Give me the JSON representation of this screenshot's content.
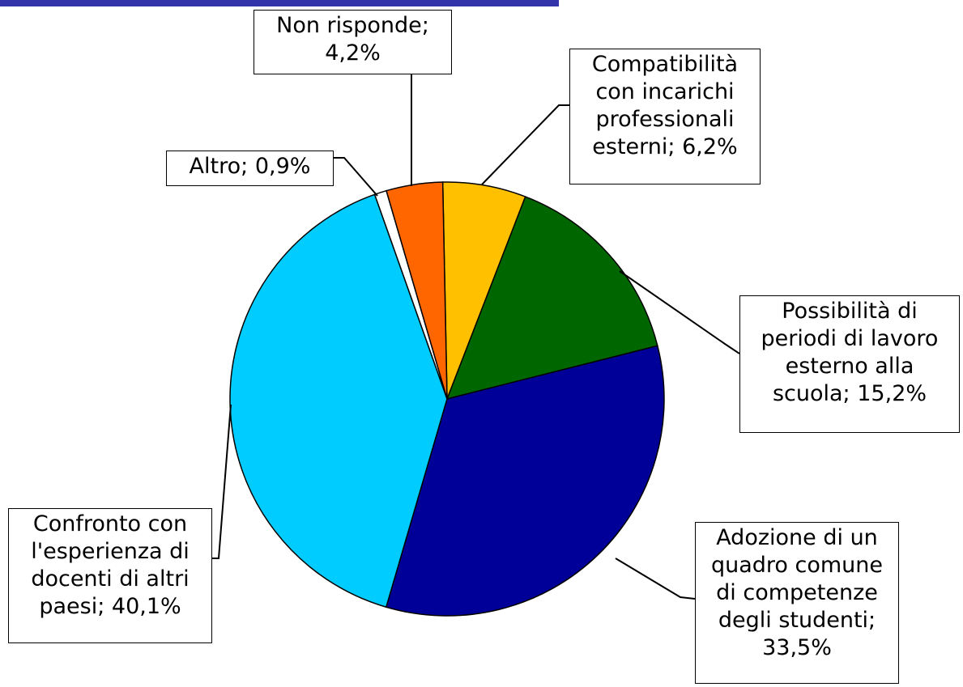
{
  "chart_data": {
    "type": "pie",
    "categories": [
      "Compatibilità con incarichi professionali esterni;",
      "Possibilità di periodi di lavoro esterno alla scuola;",
      "Adozione di un quadro comune di competenze degli studenti;",
      "Confronto con l'esperienza di docenti di altri paesi;",
      "Altro;",
      "Non risponde;"
    ],
    "values": [
      6.2,
      15.2,
      33.5,
      40.1,
      0.9,
      4.2
    ],
    "value_labels": [
      "6,2%",
      "15,2%",
      "33,5%",
      "40,1%",
      "0,9%",
      "4,2%"
    ],
    "colors": [
      "#ffc000",
      "#006600",
      "#000099",
      "#00ccff",
      "#ffffff",
      "#ff6600"
    ]
  }
}
